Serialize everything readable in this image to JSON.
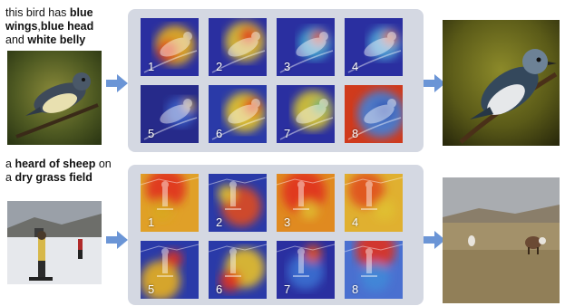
{
  "top_row": {
    "caption": [
      {
        "text": "this bird has ",
        "bold": false
      },
      {
        "text": "blue wings",
        "bold": true
      },
      {
        "text": ",",
        "bold": false
      },
      {
        "text": "blue head",
        "bold": true
      },
      {
        "text": " and ",
        "bold": false
      },
      {
        "text": "white belly",
        "bold": true
      }
    ],
    "cells": [
      "1",
      "2",
      "3",
      "4",
      "5",
      "6",
      "7",
      "8"
    ]
  },
  "bottom_row": {
    "caption": [
      {
        "text": "a ",
        "bold": false
      },
      {
        "text": "heard of sheep",
        "bold": true
      },
      {
        "text": " on a ",
        "bold": false
      },
      {
        "text": "dry grass field",
        "bold": true
      }
    ],
    "cells": [
      "1",
      "2",
      "3",
      "4",
      "5",
      "6",
      "7",
      "8"
    ]
  },
  "colors": {
    "panel_bg": "#d4d8e2",
    "arrow": "#6b95d6",
    "heat_cold": "#2a2fa0",
    "heat_hot": "#e0301e"
  }
}
